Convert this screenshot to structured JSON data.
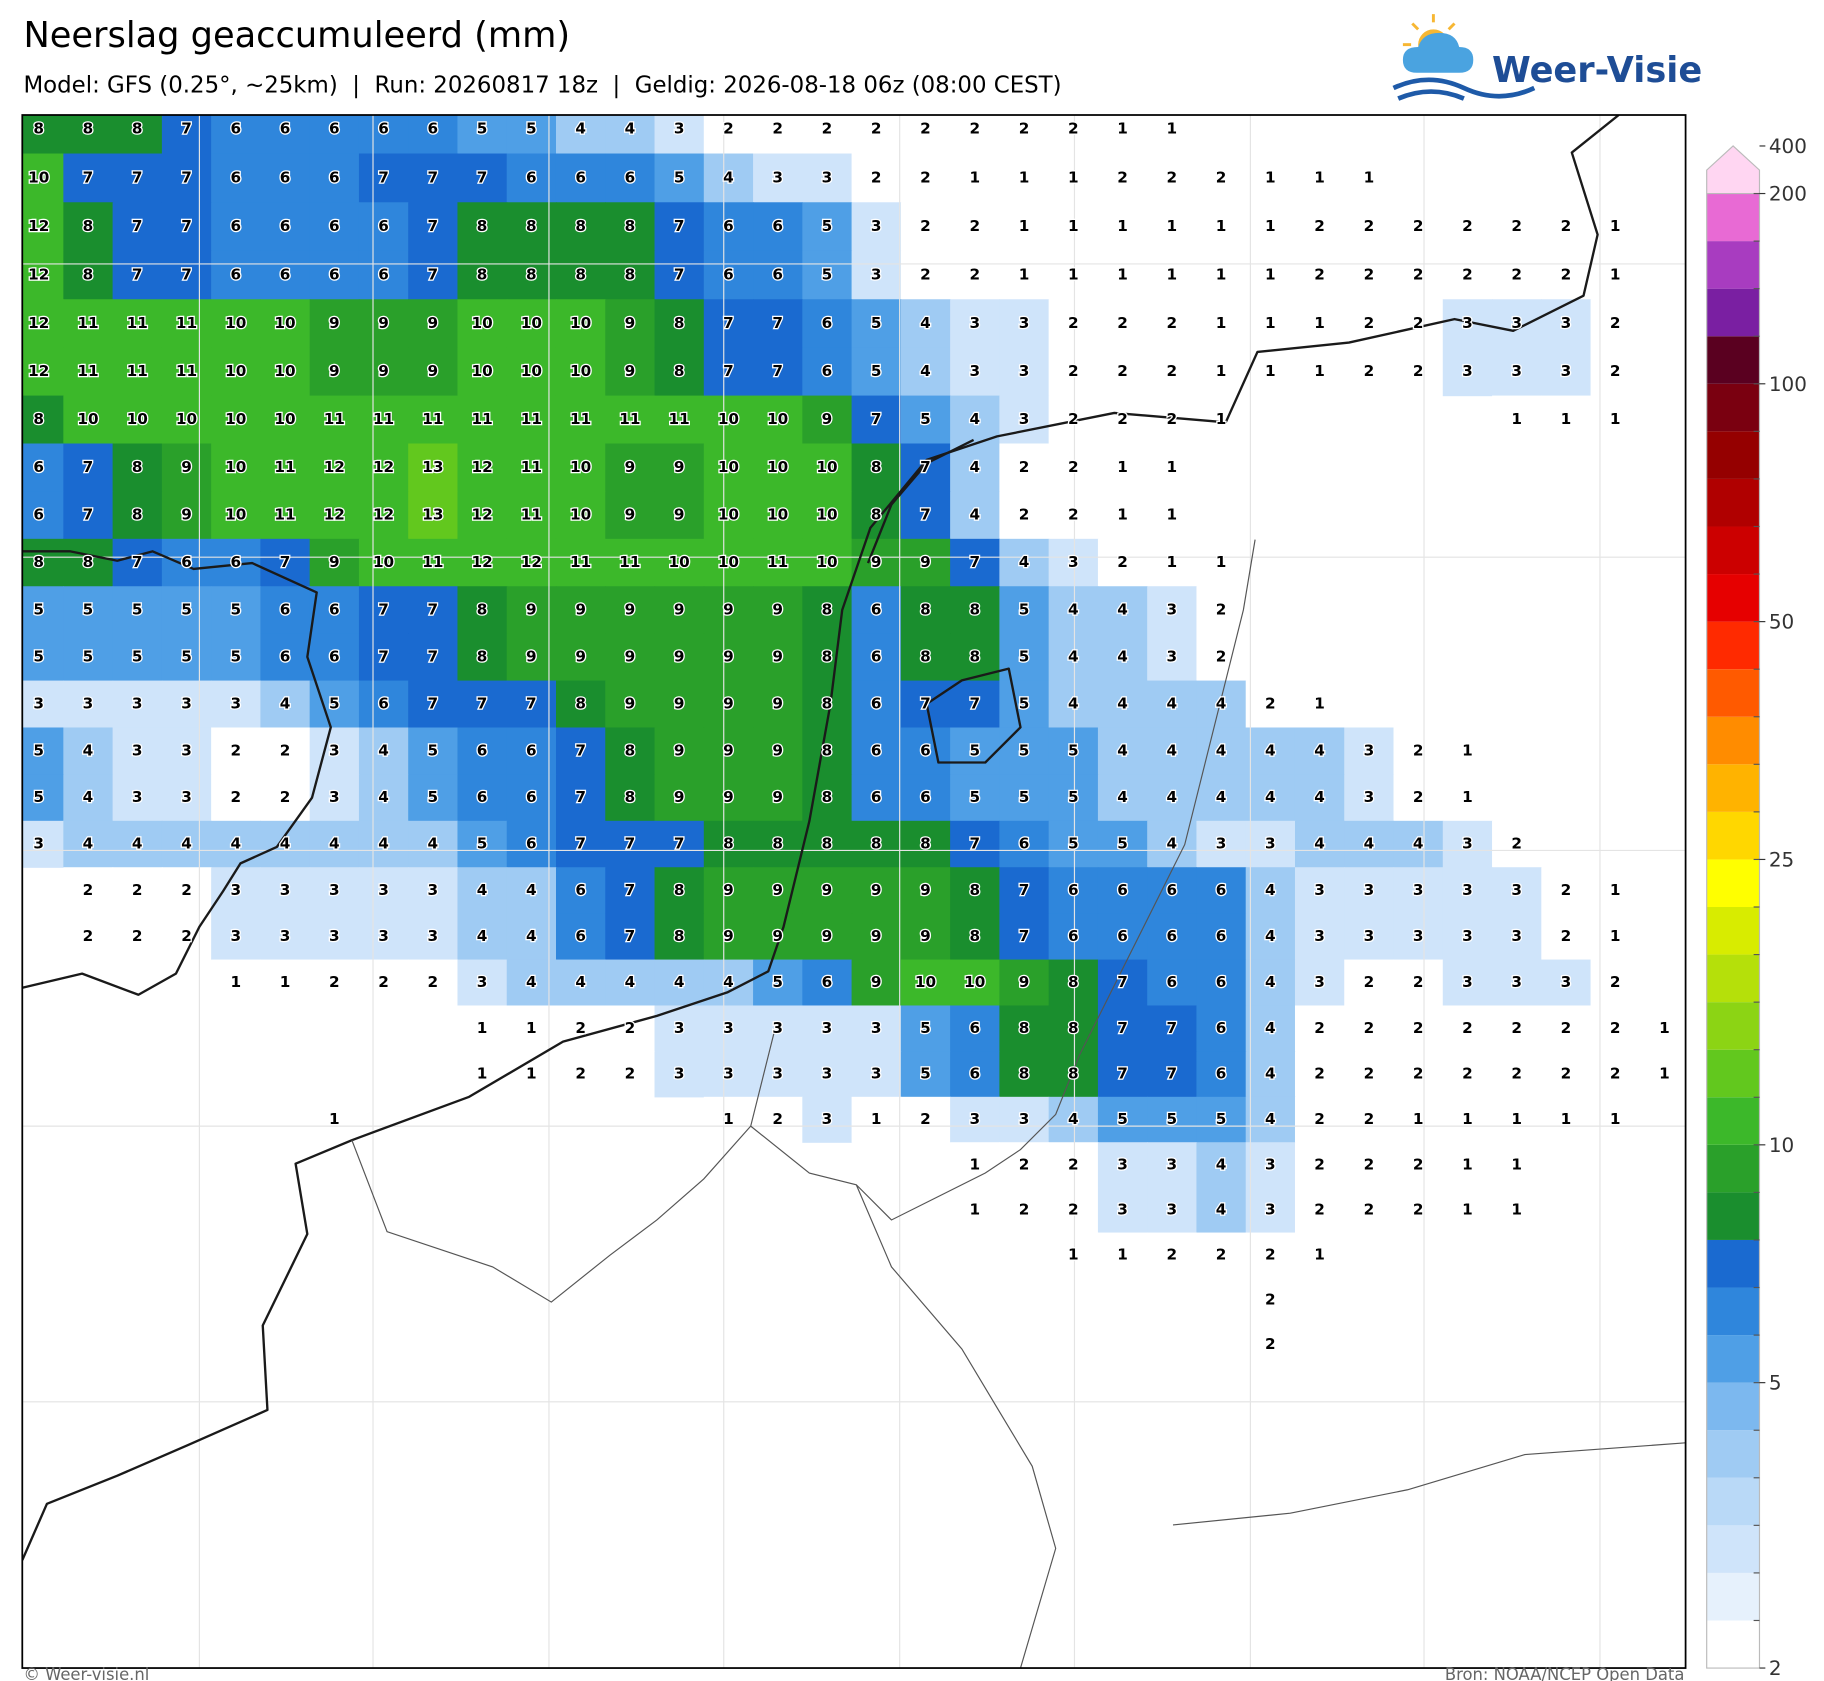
{
  "header": {
    "title": "Neerslag geaccumuleerd (mm)",
    "subtitle": "Model: GFS (0.25°, ~25km)  |  Run: 20260817 18z  |  Geldig: 2026-08-18 06z (08:00 CEST)"
  },
  "logo": "Weer-Visie",
  "map": {
    "grid": [
      [
        8,
        8,
        8,
        7,
        6,
        6,
        6,
        6,
        6,
        5,
        5,
        4,
        4,
        3,
        2,
        2,
        2,
        2,
        2,
        2,
        2,
        2,
        1,
        1
      ],
      [
        10,
        7,
        7,
        7,
        6,
        6,
        6,
        7,
        7,
        7,
        6,
        6,
        6,
        5,
        4,
        3,
        3,
        2,
        2,
        1,
        1,
        1,
        2,
        2,
        2,
        1,
        1,
        1
      ],
      [
        12,
        8,
        7,
        7,
        6,
        6,
        6,
        6,
        7,
        8,
        8,
        8,
        8,
        7,
        6,
        6,
        5,
        3,
        2,
        2,
        1,
        1,
        1,
        1,
        1,
        1,
        2,
        2,
        2,
        2,
        2,
        2,
        1
      ],
      [
        12,
        8,
        7,
        7,
        6,
        6,
        6,
        6,
        7,
        8,
        8,
        8,
        8,
        7,
        6,
        6,
        5,
        3,
        2,
        2,
        1,
        1,
        1,
        1,
        1,
        1,
        2,
        2,
        2,
        2,
        2,
        2,
        1
      ],
      [
        12,
        11,
        11,
        11,
        10,
        10,
        9,
        9,
        9,
        10,
        10,
        10,
        9,
        8,
        7,
        7,
        6,
        5,
        4,
        3,
        3,
        2,
        2,
        2,
        1,
        1,
        1,
        2,
        2,
        3,
        3,
        3,
        2
      ],
      [
        12,
        11,
        11,
        11,
        10,
        10,
        9,
        9,
        9,
        10,
        10,
        10,
        9,
        8,
        7,
        7,
        6,
        5,
        4,
        3,
        3,
        2,
        2,
        2,
        1,
        1,
        1,
        2,
        2,
        3,
        3,
        3,
        2
      ],
      [
        8,
        10,
        10,
        10,
        10,
        10,
        11,
        11,
        11,
        11,
        11,
        11,
        11,
        11,
        10,
        10,
        9,
        7,
        5,
        4,
        3,
        2,
        2,
        2,
        1,
        null,
        null,
        null,
        null,
        null,
        1,
        1,
        1
      ],
      [
        6,
        7,
        8,
        9,
        10,
        11,
        12,
        12,
        13,
        12,
        11,
        10,
        9,
        9,
        10,
        10,
        10,
        8,
        7,
        4,
        2,
        2,
        1,
        1
      ],
      [
        6,
        7,
        8,
        9,
        10,
        11,
        12,
        12,
        13,
        12,
        11,
        10,
        9,
        9,
        10,
        10,
        10,
        8,
        7,
        4,
        2,
        2,
        1,
        1
      ],
      [
        8,
        8,
        7,
        6,
        6,
        7,
        9,
        10,
        11,
        12,
        12,
        11,
        11,
        10,
        10,
        11,
        10,
        9,
        9,
        7,
        4,
        3,
        2,
        1,
        1
      ],
      [
        5,
        5,
        5,
        5,
        5,
        6,
        6,
        7,
        7,
        8,
        9,
        9,
        9,
        9,
        9,
        9,
        8,
        6,
        8,
        8,
        5,
        4,
        4,
        3,
        2
      ],
      [
        5,
        5,
        5,
        5,
        5,
        6,
        6,
        7,
        7,
        8,
        9,
        9,
        9,
        9,
        9,
        9,
        8,
        6,
        8,
        8,
        5,
        4,
        4,
        3,
        2
      ],
      [
        3,
        3,
        3,
        3,
        3,
        4,
        5,
        6,
        7,
        7,
        7,
        8,
        9,
        9,
        9,
        9,
        8,
        6,
        7,
        7,
        5,
        4,
        4,
        4,
        4,
        2,
        1
      ],
      [
        5,
        4,
        3,
        3,
        2,
        2,
        3,
        4,
        5,
        6,
        6,
        7,
        8,
        9,
        9,
        9,
        8,
        6,
        6,
        5,
        5,
        5,
        4,
        4,
        4,
        4,
        4,
        3,
        2,
        1
      ],
      [
        5,
        4,
        3,
        3,
        2,
        2,
        3,
        4,
        5,
        6,
        6,
        7,
        8,
        9,
        9,
        9,
        8,
        6,
        6,
        5,
        5,
        5,
        4,
        4,
        4,
        4,
        4,
        3,
        2,
        1
      ],
      [
        3,
        4,
        4,
        4,
        4,
        4,
        4,
        4,
        4,
        5,
        6,
        7,
        7,
        7,
        8,
        8,
        8,
        8,
        8,
        7,
        6,
        5,
        5,
        4,
        3,
        3,
        4,
        4,
        4,
        3,
        2
      ],
      [
        null,
        2,
        2,
        2,
        3,
        3,
        3,
        3,
        3,
        4,
        4,
        6,
        7,
        8,
        9,
        9,
        9,
        9,
        9,
        8,
        7,
        6,
        6,
        6,
        6,
        4,
        3,
        3,
        3,
        3,
        3,
        2,
        1
      ],
      [
        null,
        2,
        2,
        2,
        3,
        3,
        3,
        3,
        3,
        4,
        4,
        6,
        7,
        8,
        9,
        9,
        9,
        9,
        9,
        8,
        7,
        6,
        6,
        6,
        6,
        4,
        3,
        3,
        3,
        3,
        3,
        2,
        1
      ],
      [
        null,
        null,
        null,
        null,
        1,
        1,
        2,
        2,
        2,
        3,
        4,
        4,
        4,
        4,
        4,
        5,
        6,
        9,
        10,
        10,
        9,
        8,
        7,
        6,
        6,
        4,
        3,
        2,
        2,
        3,
        3,
        3,
        2
      ],
      [
        null,
        null,
        null,
        null,
        null,
        null,
        null,
        null,
        null,
        1,
        1,
        2,
        2,
        3,
        3,
        3,
        3,
        3,
        5,
        6,
        8,
        8,
        7,
        7,
        6,
        4,
        2,
        2,
        2,
        2,
        2,
        2,
        2,
        1
      ],
      [
        null,
        null,
        null,
        null,
        null,
        null,
        null,
        null,
        null,
        1,
        1,
        2,
        2,
        3,
        3,
        3,
        3,
        3,
        5,
        6,
        8,
        8,
        7,
        7,
        6,
        4,
        2,
        2,
        2,
        2,
        2,
        2,
        2,
        1
      ],
      [
        null,
        null,
        null,
        null,
        null,
        null,
        1,
        null,
        null,
        null,
        null,
        null,
        null,
        null,
        1,
        2,
        3,
        1,
        2,
        3,
        3,
        4,
        5,
        5,
        5,
        4,
        2,
        2,
        1,
        1,
        1,
        1,
        1
      ],
      [
        null,
        null,
        null,
        null,
        null,
        null,
        null,
        null,
        null,
        null,
        null,
        null,
        null,
        null,
        null,
        null,
        null,
        null,
        null,
        1,
        2,
        2,
        3,
        3,
        4,
        3,
        2,
        2,
        2,
        1,
        1
      ],
      [
        null,
        null,
        null,
        null,
        null,
        null,
        null,
        null,
        null,
        null,
        null,
        null,
        null,
        null,
        null,
        null,
        null,
        null,
        null,
        1,
        2,
        2,
        3,
        3,
        4,
        3,
        2,
        2,
        2,
        1,
        1
      ],
      [
        null,
        null,
        null,
        null,
        null,
        null,
        null,
        null,
        null,
        null,
        null,
        null,
        null,
        null,
        null,
        null,
        null,
        null,
        null,
        null,
        null,
        1,
        1,
        2,
        2,
        2,
        1
      ],
      [
        null,
        null,
        null,
        null,
        null,
        null,
        null,
        null,
        null,
        null,
        null,
        null,
        null,
        null,
        null,
        null,
        null,
        null,
        null,
        null,
        null,
        null,
        null,
        null,
        null,
        2
      ],
      [
        null,
        null,
        null,
        null,
        null,
        null,
        null,
        null,
        null,
        null,
        null,
        null,
        null,
        null,
        null,
        null,
        null,
        null,
        null,
        null,
        null,
        null,
        null,
        null,
        null,
        2
      ]
    ]
  },
  "colorbar": {
    "levels": [
      2,
      2.5,
      3,
      3.5,
      4,
      4.5,
      5,
      6,
      7,
      8,
      9,
      10,
      12.5,
      15,
      17.5,
      20,
      22.5,
      25,
      30,
      35,
      40,
      45,
      50,
      60,
      70,
      80,
      90,
      100,
      125,
      150,
      175,
      200,
      400
    ],
    "colors": [
      "#ffffff",
      "#e6f1fc",
      "#cfe4fa",
      "#b9d9f7",
      "#9fcbf3",
      "#7cb8ef",
      "#4f9fe6",
      "#2f86dc",
      "#1a6ad0",
      "#1a8e2e",
      "#2aa02a",
      "#3cb82a",
      "#62c81e",
      "#8cd414",
      "#b5e00a",
      "#d8ec00",
      "#ffff00",
      "#ffd700",
      "#ffb300",
      "#ff8c00",
      "#ff5a00",
      "#ff2a00",
      "#e60000",
      "#cc0000",
      "#b00000",
      "#950000",
      "#7a0010",
      "#5a0020",
      "#7a1fa2",
      "#a83cc0",
      "#e86ad4",
      "#ffd6f2"
    ],
    "ticks": [
      2,
      5,
      10,
      25,
      50,
      100,
      200,
      400
    ]
  },
  "footer": {
    "copyright": "© Weer-visie.nl",
    "source": "Bron: NOAA/NCEP Open Data"
  }
}
